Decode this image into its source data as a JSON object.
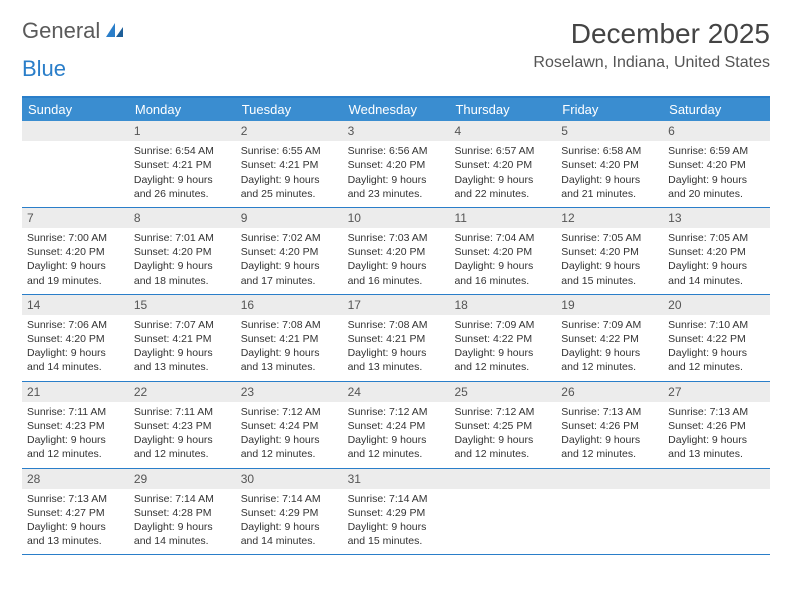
{
  "logo": {
    "word1": "General",
    "word2": "Blue"
  },
  "title": "December 2025",
  "location": "Roselawn, Indiana, United States",
  "colors": {
    "header_bar": "#3a8dd0",
    "rule": "#2a7ec9",
    "daynum_bg": "#ececec",
    "text": "#333333",
    "logo_gray": "#5a5a5a",
    "logo_blue": "#2a7ec9"
  },
  "days_of_week": [
    "Sunday",
    "Monday",
    "Tuesday",
    "Wednesday",
    "Thursday",
    "Friday",
    "Saturday"
  ],
  "weeks": [
    [
      {
        "n": "",
        "sr": "",
        "ss": "",
        "dl": ""
      },
      {
        "n": "1",
        "sr": "6:54 AM",
        "ss": "4:21 PM",
        "dl": "9 hours and 26 minutes."
      },
      {
        "n": "2",
        "sr": "6:55 AM",
        "ss": "4:21 PM",
        "dl": "9 hours and 25 minutes."
      },
      {
        "n": "3",
        "sr": "6:56 AM",
        "ss": "4:20 PM",
        "dl": "9 hours and 23 minutes."
      },
      {
        "n": "4",
        "sr": "6:57 AM",
        "ss": "4:20 PM",
        "dl": "9 hours and 22 minutes."
      },
      {
        "n": "5",
        "sr": "6:58 AM",
        "ss": "4:20 PM",
        "dl": "9 hours and 21 minutes."
      },
      {
        "n": "6",
        "sr": "6:59 AM",
        "ss": "4:20 PM",
        "dl": "9 hours and 20 minutes."
      }
    ],
    [
      {
        "n": "7",
        "sr": "7:00 AM",
        "ss": "4:20 PM",
        "dl": "9 hours and 19 minutes."
      },
      {
        "n": "8",
        "sr": "7:01 AM",
        "ss": "4:20 PM",
        "dl": "9 hours and 18 minutes."
      },
      {
        "n": "9",
        "sr": "7:02 AM",
        "ss": "4:20 PM",
        "dl": "9 hours and 17 minutes."
      },
      {
        "n": "10",
        "sr": "7:03 AM",
        "ss": "4:20 PM",
        "dl": "9 hours and 16 minutes."
      },
      {
        "n": "11",
        "sr": "7:04 AM",
        "ss": "4:20 PM",
        "dl": "9 hours and 16 minutes."
      },
      {
        "n": "12",
        "sr": "7:05 AM",
        "ss": "4:20 PM",
        "dl": "9 hours and 15 minutes."
      },
      {
        "n": "13",
        "sr": "7:05 AM",
        "ss": "4:20 PM",
        "dl": "9 hours and 14 minutes."
      }
    ],
    [
      {
        "n": "14",
        "sr": "7:06 AM",
        "ss": "4:20 PM",
        "dl": "9 hours and 14 minutes."
      },
      {
        "n": "15",
        "sr": "7:07 AM",
        "ss": "4:21 PM",
        "dl": "9 hours and 13 minutes."
      },
      {
        "n": "16",
        "sr": "7:08 AM",
        "ss": "4:21 PM",
        "dl": "9 hours and 13 minutes."
      },
      {
        "n": "17",
        "sr": "7:08 AM",
        "ss": "4:21 PM",
        "dl": "9 hours and 13 minutes."
      },
      {
        "n": "18",
        "sr": "7:09 AM",
        "ss": "4:22 PM",
        "dl": "9 hours and 12 minutes."
      },
      {
        "n": "19",
        "sr": "7:09 AM",
        "ss": "4:22 PM",
        "dl": "9 hours and 12 minutes."
      },
      {
        "n": "20",
        "sr": "7:10 AM",
        "ss": "4:22 PM",
        "dl": "9 hours and 12 minutes."
      }
    ],
    [
      {
        "n": "21",
        "sr": "7:11 AM",
        "ss": "4:23 PM",
        "dl": "9 hours and 12 minutes."
      },
      {
        "n": "22",
        "sr": "7:11 AM",
        "ss": "4:23 PM",
        "dl": "9 hours and 12 minutes."
      },
      {
        "n": "23",
        "sr": "7:12 AM",
        "ss": "4:24 PM",
        "dl": "9 hours and 12 minutes."
      },
      {
        "n": "24",
        "sr": "7:12 AM",
        "ss": "4:24 PM",
        "dl": "9 hours and 12 minutes."
      },
      {
        "n": "25",
        "sr": "7:12 AM",
        "ss": "4:25 PM",
        "dl": "9 hours and 12 minutes."
      },
      {
        "n": "26",
        "sr": "7:13 AM",
        "ss": "4:26 PM",
        "dl": "9 hours and 12 minutes."
      },
      {
        "n": "27",
        "sr": "7:13 AM",
        "ss": "4:26 PM",
        "dl": "9 hours and 13 minutes."
      }
    ],
    [
      {
        "n": "28",
        "sr": "7:13 AM",
        "ss": "4:27 PM",
        "dl": "9 hours and 13 minutes."
      },
      {
        "n": "29",
        "sr": "7:14 AM",
        "ss": "4:28 PM",
        "dl": "9 hours and 14 minutes."
      },
      {
        "n": "30",
        "sr": "7:14 AM",
        "ss": "4:29 PM",
        "dl": "9 hours and 14 minutes."
      },
      {
        "n": "31",
        "sr": "7:14 AM",
        "ss": "4:29 PM",
        "dl": "9 hours and 15 minutes."
      },
      {
        "n": "",
        "sr": "",
        "ss": "",
        "dl": ""
      },
      {
        "n": "",
        "sr": "",
        "ss": "",
        "dl": ""
      },
      {
        "n": "",
        "sr": "",
        "ss": "",
        "dl": ""
      }
    ]
  ],
  "labels": {
    "sunrise": "Sunrise:",
    "sunset": "Sunset:",
    "daylight": "Daylight:"
  }
}
